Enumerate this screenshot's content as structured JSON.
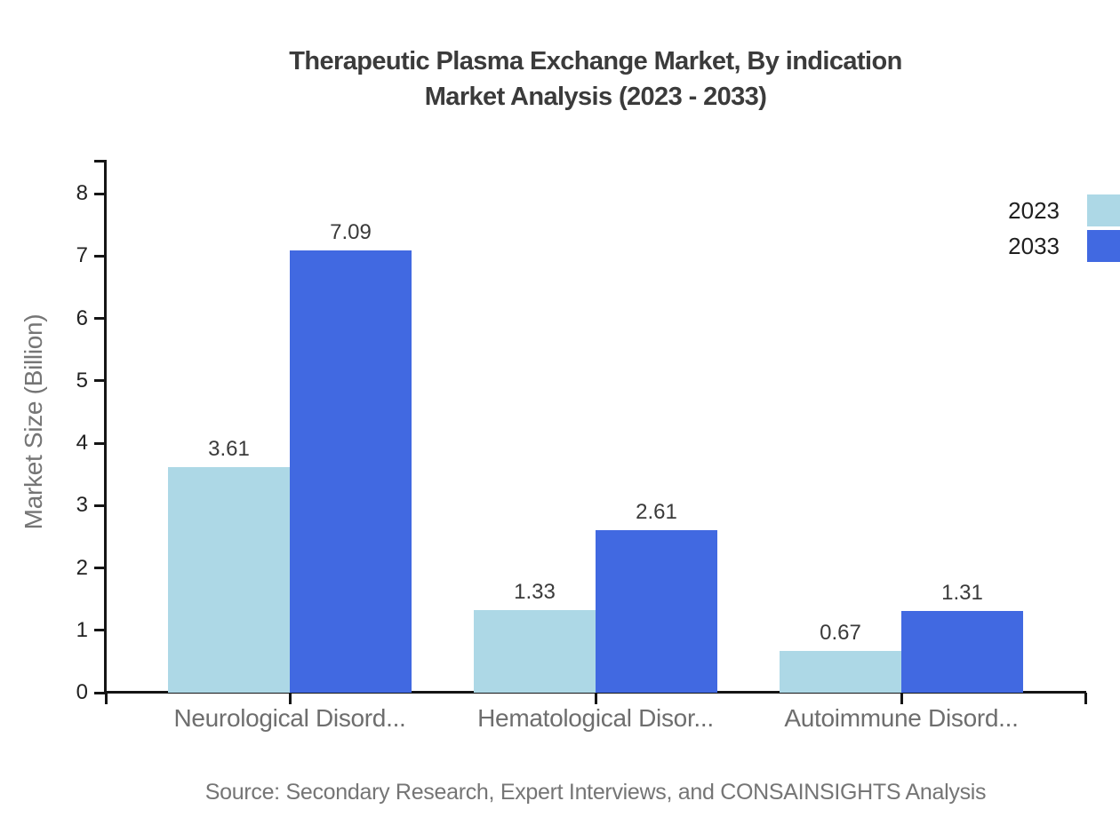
{
  "title": {
    "line1": "Therapeutic Plasma Exchange Market, By indication",
    "line2": "Market Analysis (2023 - 2033)"
  },
  "y_axis": {
    "label": "Market Size (Billion)"
  },
  "legend": {
    "items": [
      {
        "label": "2023",
        "color": "#ADD8E6"
      },
      {
        "label": "2033",
        "color": "#4169E1"
      }
    ]
  },
  "source": "Source: Secondary Research, Expert Interviews, and CONSAINSIGHTS Analysis",
  "chart_data": {
    "type": "bar",
    "title": "Therapeutic Plasma Exchange Market, By indication Market Analysis (2023 - 2033)",
    "categories": [
      "Neurological Disord...",
      "Hematological Disor...",
      "Autoimmune Disord..."
    ],
    "series": [
      {
        "name": "2023",
        "color": "#ADD8E6",
        "values": [
          3.61,
          1.33,
          0.67
        ]
      },
      {
        "name": "2033",
        "color": "#4169E1",
        "values": [
          7.09,
          2.61,
          1.31
        ]
      }
    ],
    "xlabel": "",
    "ylabel": "Market Size (Billion)",
    "ylim": [
      0,
      8.5
    ],
    "yticks": [
      0,
      1,
      2,
      3,
      4,
      5,
      6,
      7,
      8
    ],
    "grid": false,
    "legend_position": "right-edge-clipped",
    "value_labels": true,
    "value_label_examples": [
      "3.61",
      "7.09",
      "1.33",
      "2.61",
      "0.67",
      "1.31"
    ]
  }
}
